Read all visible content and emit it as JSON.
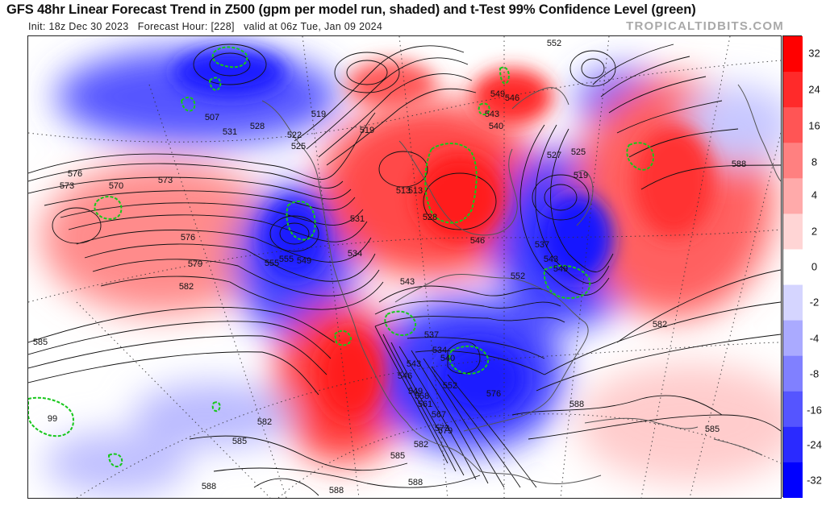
{
  "header": {
    "title": "GFS 48hr Linear Forecast Trend in Z500 (gpm per model run, shaded) and t-Test 99% Confidence Level (green)",
    "init_label": "Init:",
    "init_value": "18z Dec 30 2023",
    "forecast_hour_label": "Forecast Hour:",
    "forecast_hour_value": "[228]",
    "valid_text": "valid at 06z Tue, Jan 09 2024",
    "brand": "TROPICALTIDBITS.COM"
  },
  "colorbar": {
    "ticks": [
      "32",
      "24",
      "16",
      "8",
      "4",
      "2",
      "0",
      "-2",
      "-4",
      "-8",
      "-16",
      "-24",
      "-32"
    ],
    "colors": [
      "#0000ff",
      "#2a2aff",
      "#5555ff",
      "#8080ff",
      "#aaaaff",
      "#d5d5ff",
      "#ffffff",
      "#ffd5d5",
      "#ffaaaa",
      "#ff8080",
      "#ff5555",
      "#ff2a2a",
      "#ff0000"
    ]
  },
  "map": {
    "anomalies": [
      {
        "id": "pos-n-pacific",
        "sign": "positive",
        "strength": "moderate"
      },
      {
        "id": "neg-gulf-alaska",
        "sign": "negative",
        "strength": "strong"
      },
      {
        "id": "neg-w-canada",
        "sign": "negative",
        "strength": "strong"
      },
      {
        "id": "pos-hudson-bay",
        "sign": "positive",
        "strength": "strong"
      },
      {
        "id": "neg-ne-canada",
        "sign": "negative",
        "strength": "strong"
      },
      {
        "id": "pos-n-atlantic",
        "sign": "positive",
        "strength": "strong"
      },
      {
        "id": "pos-sw-us",
        "sign": "positive",
        "strength": "strong"
      },
      {
        "id": "neg-central-us",
        "sign": "negative",
        "strength": "strong"
      },
      {
        "id": "neg-subtropical-pacific",
        "sign": "negative",
        "strength": "weak"
      },
      {
        "id": "pos-caribbean",
        "sign": "positive",
        "strength": "weak"
      }
    ],
    "contour_labels": [
      "552",
      "549",
      "546",
      "543",
      "540",
      "513",
      "507",
      "531",
      "528",
      "522",
      "519",
      "525",
      "519",
      "513",
      "531",
      "528",
      "546",
      "537",
      "527",
      "525",
      "519",
      "543",
      "549",
      "555",
      "552",
      "576",
      "573",
      "570",
      "573",
      "576",
      "579",
      "582",
      "585",
      "534",
      "549",
      "555",
      "543",
      "537",
      "534",
      "540",
      "543",
      "546",
      "549",
      "552",
      "558",
      "561",
      "567",
      "573",
      "576",
      "579",
      "582",
      "585",
      "588",
      "582",
      "585",
      "588",
      "588",
      "588",
      "585",
      "582",
      "588",
      "99"
    ]
  }
}
